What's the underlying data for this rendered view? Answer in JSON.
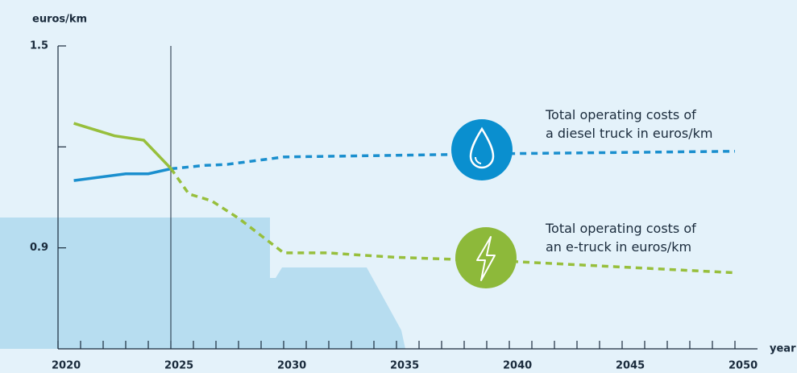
{
  "chart_data": {
    "type": "line",
    "y_axis_label": "euros/km",
    "x_axis_label": "year",
    "xlim": [
      2020,
      2051
    ],
    "ylim": [
      0.6,
      1.5
    ],
    "xticks": [
      2020,
      {
        "value": 2021,
        "label": null
      },
      {
        "value": 2022,
        "label": null
      },
      {
        "value": 2023,
        "label": null
      },
      {
        "value": 2024,
        "label": null
      },
      2025,
      {
        "value": 2026,
        "label": null
      },
      {
        "value": 2027,
        "label": null
      },
      {
        "value": 2028,
        "label": null
      },
      {
        "value": 2029,
        "label": null
      },
      2030,
      {
        "value": 2031,
        "label": null
      },
      {
        "value": 2032,
        "label": null
      },
      {
        "value": 2033,
        "label": null
      },
      {
        "value": 2034,
        "label": null
      },
      2035,
      {
        "value": 2036,
        "label": null
      },
      {
        "value": 2037,
        "label": null
      },
      {
        "value": 2038,
        "label": null
      },
      {
        "value": 2039,
        "label": null
      },
      2040,
      {
        "value": 2041,
        "label": null
      },
      {
        "value": 2042,
        "label": null
      },
      {
        "value": 2043,
        "label": null
      },
      {
        "value": 2044,
        "label": null
      },
      2045,
      {
        "value": 2046,
        "label": null
      },
      {
        "value": 2047,
        "label": null
      },
      {
        "value": 2048,
        "label": null
      },
      {
        "value": 2049,
        "label": null
      },
      2050
    ],
    "yticks": [
      0.9,
      {
        "value": 1.2,
        "label": null
      },
      1.5
    ],
    "vline": 2025,
    "series": [
      {
        "name": "Total operating costs of a diesel truck in euros/km",
        "color": "#1a8fce",
        "x": [
          2020.7,
          2023,
          2024,
          2025,
          2026.5,
          2027.5,
          2030,
          2035,
          2040,
          2050
        ],
        "values": [
          1.1,
          1.12,
          1.12,
          1.135,
          1.145,
          1.148,
          1.17,
          1.175,
          1.18,
          1.187
        ]
      },
      {
        "name": "Total operating costs of an e-truck in euros/km",
        "color": "#97bf3c",
        "x": [
          2020.7,
          2022.5,
          2023.8,
          2025,
          2025.8,
          2026.8,
          2028,
          2030,
          2032,
          2033.5,
          2035,
          2040,
          2050
        ],
        "values": [
          1.27,
          1.233,
          1.22,
          1.136,
          1.06,
          1.04,
          0.988,
          0.885,
          0.885,
          0.878,
          0.872,
          0.86,
          0.826
        ]
      }
    ]
  }
}
